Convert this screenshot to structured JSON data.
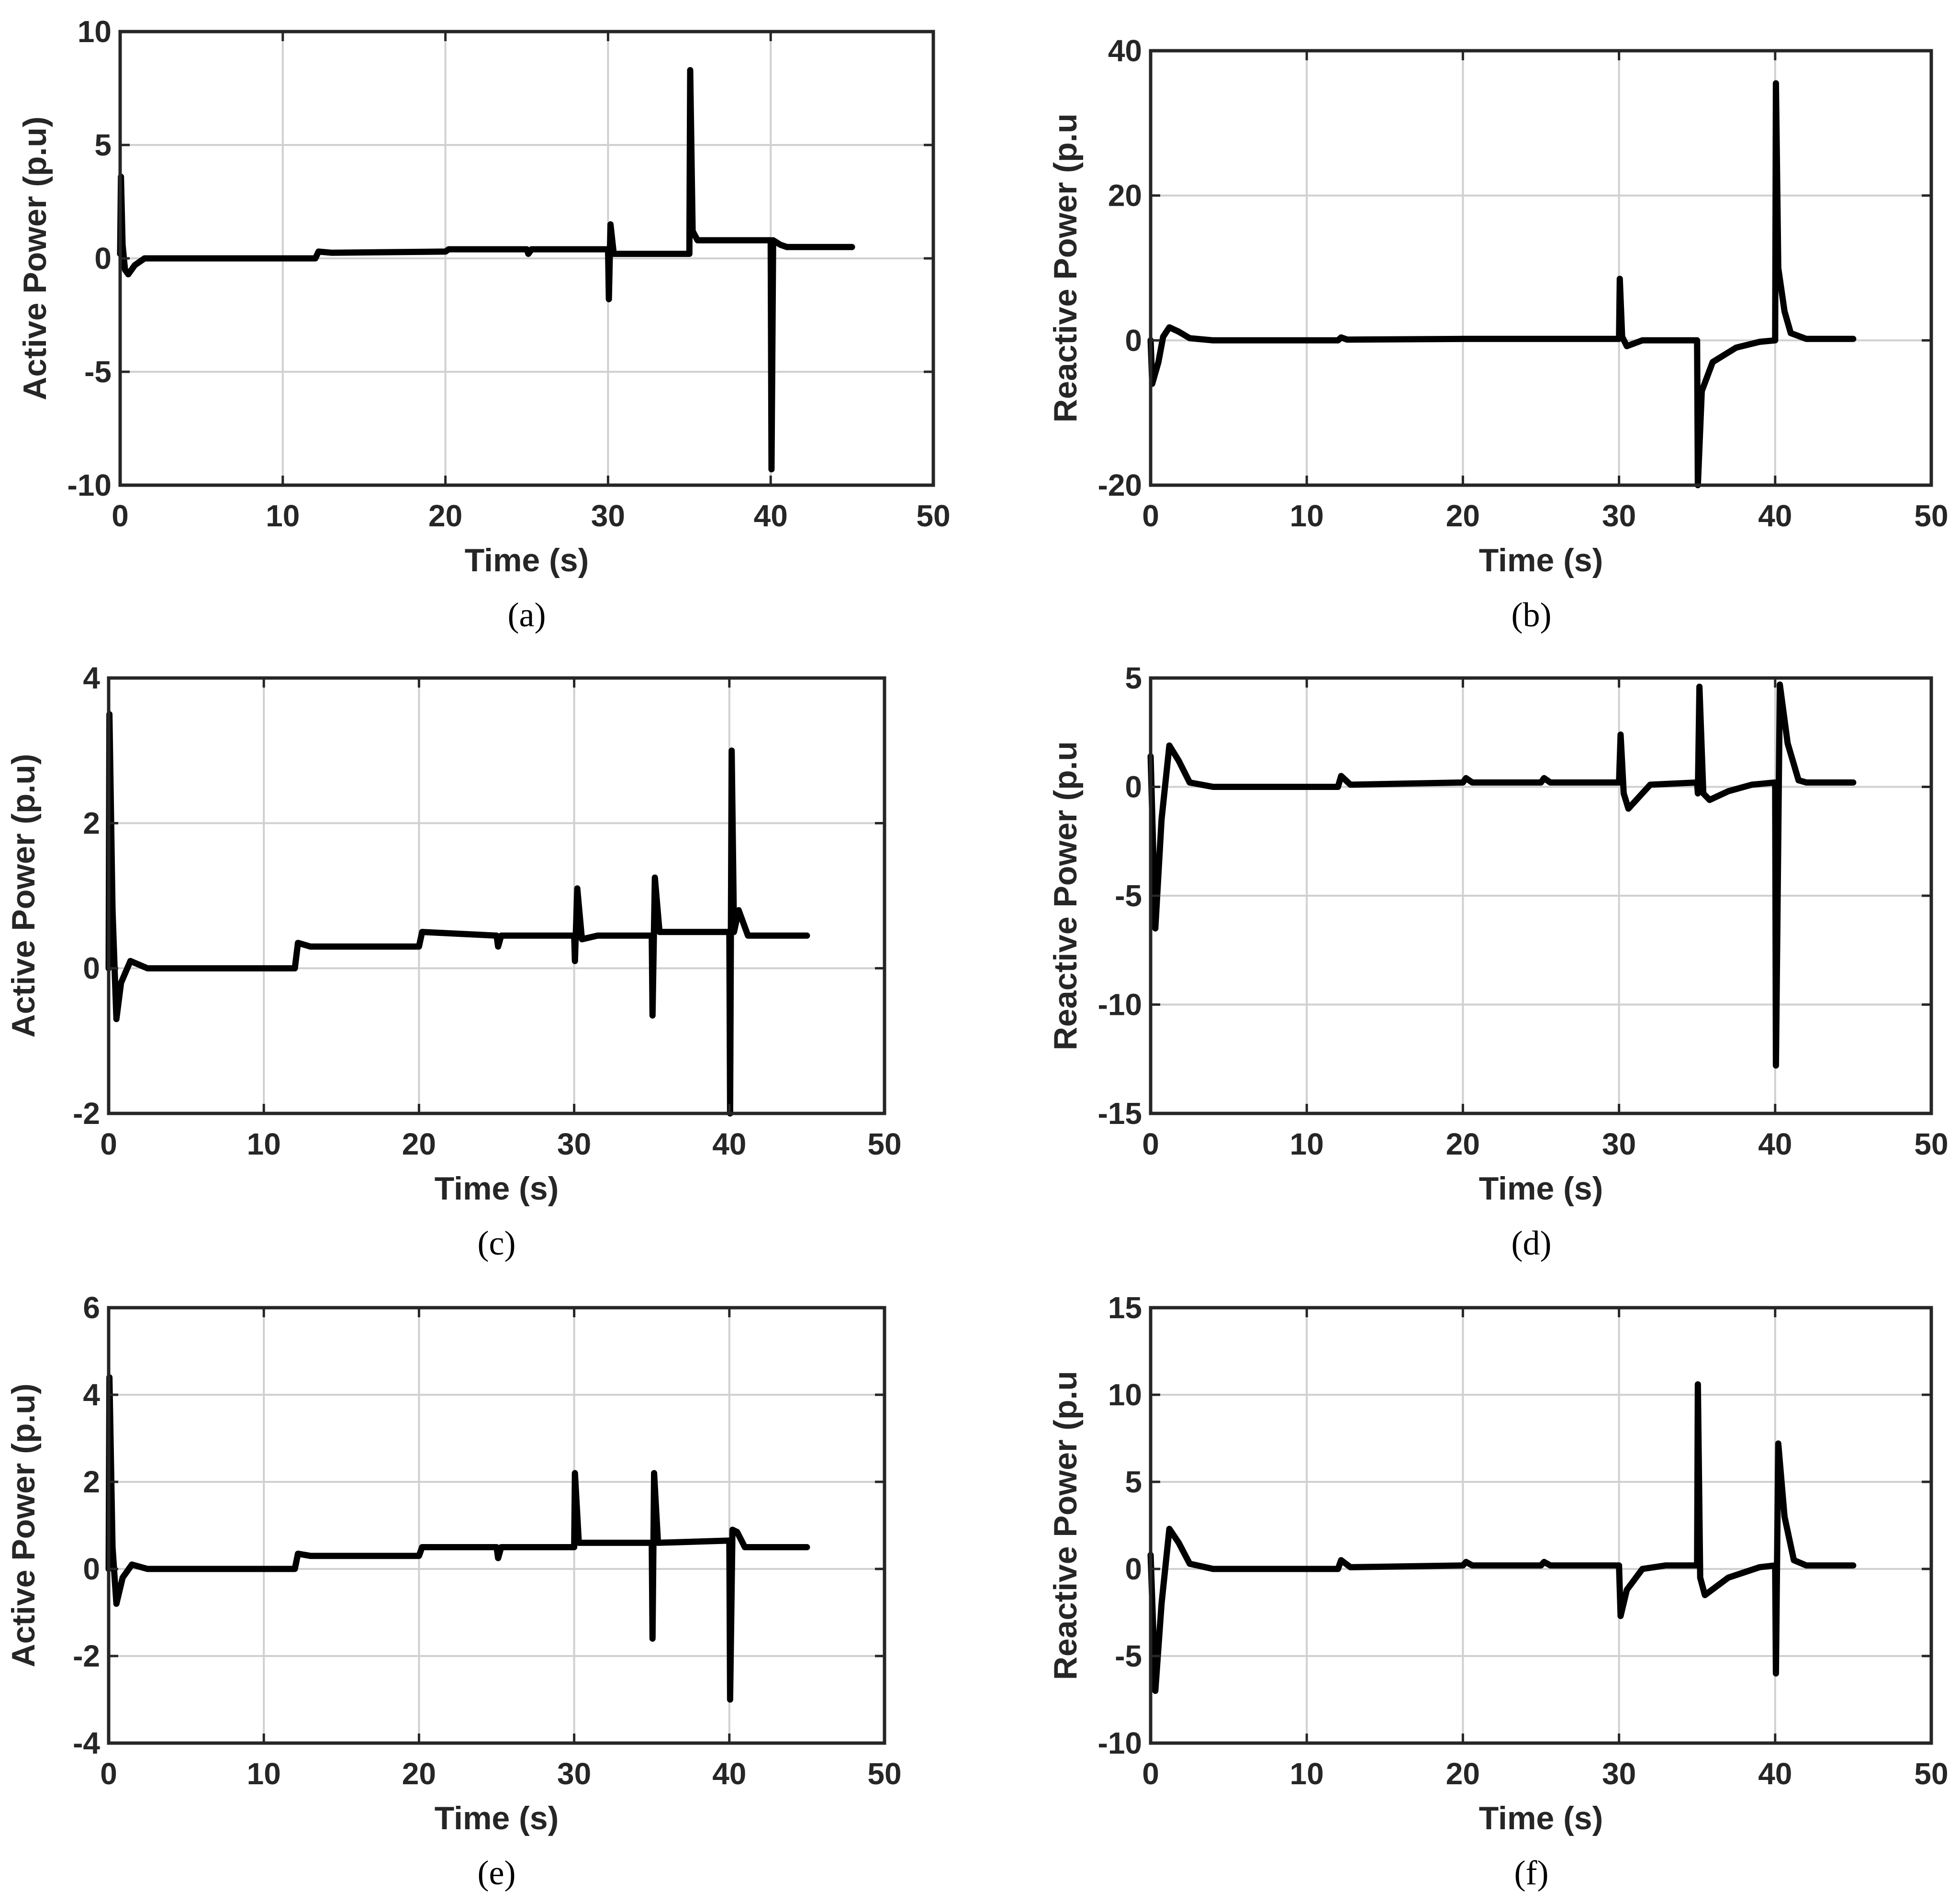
{
  "figure": {
    "colors": {
      "line": "#000000",
      "axes": "#262626",
      "grid": "#d0d0d0",
      "background": "#ffffff"
    }
  },
  "chart_data": [
    {
      "type": "line",
      "caption": "(a)",
      "xlabel": "Time (s)",
      "ylabel": "Active Power (p.u)",
      "xlim": [
        0,
        50
      ],
      "ylim": [
        -10,
        10
      ],
      "grid": true,
      "xticks": [
        "0",
        "10",
        "20",
        "30",
        "40",
        "50"
      ],
      "yticks": [
        "-10",
        "-5",
        "0",
        "5",
        "10"
      ],
      "series": [
        {
          "name": "Active Power",
          "points": [
            [
              0,
              0.2
            ],
            [
              0.05,
              3.6
            ],
            [
              0.15,
              0.6
            ],
            [
              0.3,
              -0.5
            ],
            [
              0.5,
              -0.7
            ],
            [
              0.9,
              -0.3
            ],
            [
              1.5,
              0
            ],
            [
              3,
              0
            ],
            [
              12,
              0
            ],
            [
              12.2,
              0.3
            ],
            [
              13,
              0.25
            ],
            [
              20,
              0.3
            ],
            [
              20.2,
              0.4
            ],
            [
              25,
              0.4
            ],
            [
              25.1,
              0.2
            ],
            [
              25.3,
              0.4
            ],
            [
              30,
              0.4
            ],
            [
              30.05,
              -1.8
            ],
            [
              30.15,
              1.5
            ],
            [
              30.35,
              0.2
            ],
            [
              35,
              0.2
            ],
            [
              35.05,
              8.3
            ],
            [
              35.2,
              1.2
            ],
            [
              35.5,
              0.8
            ],
            [
              40,
              0.8
            ],
            [
              40.05,
              -9.3
            ],
            [
              40.15,
              0.8
            ],
            [
              40.6,
              0.6
            ],
            [
              41,
              0.5
            ],
            [
              45,
              0.5
            ]
          ]
        }
      ]
    },
    {
      "type": "line",
      "caption": "(b)",
      "xlabel": "Time (s)",
      "ylabel": "Reactive Power (p.u",
      "xlim": [
        0,
        50
      ],
      "ylim": [
        -20,
        40
      ],
      "grid": true,
      "xticks": [
        "0",
        "10",
        "20",
        "30",
        "40",
        "50"
      ],
      "yticks": [
        "-20",
        "0",
        "20",
        "40"
      ],
      "series": [
        {
          "name": "Reactive Power",
          "points": [
            [
              0,
              0
            ],
            [
              0.1,
              -6
            ],
            [
              0.5,
              -3
            ],
            [
              0.8,
              0.5
            ],
            [
              1.2,
              1.8
            ],
            [
              1.8,
              1.2
            ],
            [
              2.5,
              0.3
            ],
            [
              4,
              0
            ],
            [
              12,
              0
            ],
            [
              12.2,
              0.4
            ],
            [
              12.6,
              0.1
            ],
            [
              20,
              0.2
            ],
            [
              25,
              0.2
            ],
            [
              30,
              0.2
            ],
            [
              30.05,
              8.5
            ],
            [
              30.2,
              0.5
            ],
            [
              30.5,
              -0.8
            ],
            [
              31.5,
              0
            ],
            [
              35,
              0
            ],
            [
              35.05,
              -20
            ],
            [
              35.3,
              -7
            ],
            [
              36,
              -3
            ],
            [
              37.5,
              -1
            ],
            [
              39,
              -0.2
            ],
            [
              40,
              0
            ],
            [
              40.05,
              35.5
            ],
            [
              40.2,
              10
            ],
            [
              40.6,
              4
            ],
            [
              41,
              1
            ],
            [
              42,
              0.2
            ],
            [
              45,
              0.2
            ]
          ]
        }
      ]
    },
    {
      "type": "line",
      "caption": "(c)",
      "xlabel": "Time (s)",
      "ylabel": "Active Power (p.u)",
      "xlim": [
        0,
        50
      ],
      "ylim": [
        -2,
        4
      ],
      "grid": true,
      "xticks": [
        "0",
        "10",
        "20",
        "30",
        "40",
        "50"
      ],
      "yticks": [
        "-2",
        "0",
        "2",
        "4"
      ],
      "series": [
        {
          "name": "Active Power",
          "points": [
            [
              0,
              0
            ],
            [
              0.05,
              3.5
            ],
            [
              0.25,
              0.8
            ],
            [
              0.5,
              -0.7
            ],
            [
              0.8,
              -0.2
            ],
            [
              1.4,
              0.1
            ],
            [
              2.5,
              0
            ],
            [
              12,
              0
            ],
            [
              12.2,
              0.35
            ],
            [
              13,
              0.3
            ],
            [
              20,
              0.3
            ],
            [
              20.2,
              0.5
            ],
            [
              25,
              0.45
            ],
            [
              25.1,
              0.3
            ],
            [
              25.3,
              0.45
            ],
            [
              30,
              0.45
            ],
            [
              30.05,
              0.1
            ],
            [
              30.2,
              1.1
            ],
            [
              30.5,
              0.4
            ],
            [
              31.5,
              0.45
            ],
            [
              35,
              0.45
            ],
            [
              35.05,
              -0.65
            ],
            [
              35.2,
              1.25
            ],
            [
              35.5,
              0.5
            ],
            [
              40,
              0.5
            ],
            [
              40.05,
              -2
            ],
            [
              40.15,
              3
            ],
            [
              40.3,
              0.5
            ],
            [
              40.6,
              0.8
            ],
            [
              41.2,
              0.45
            ],
            [
              45,
              0.45
            ]
          ]
        }
      ]
    },
    {
      "type": "line",
      "caption": "(d)",
      "xlabel": "Time (s)",
      "ylabel": "Reactive Power (p.u",
      "xlim": [
        0,
        50
      ],
      "ylim": [
        -15,
        5
      ],
      "grid": true,
      "xticks": [
        "0",
        "10",
        "20",
        "30",
        "40",
        "50"
      ],
      "yticks": [
        "-15",
        "-10",
        "-5",
        "0",
        "5"
      ],
      "series": [
        {
          "name": "Reactive Power",
          "points": [
            [
              0,
              1.4
            ],
            [
              0.3,
              -6.5
            ],
            [
              0.7,
              -1.5
            ],
            [
              1.2,
              1.9
            ],
            [
              1.8,
              1.2
            ],
            [
              2.5,
              0.2
            ],
            [
              4,
              0
            ],
            [
              12,
              0
            ],
            [
              12.2,
              0.5
            ],
            [
              12.8,
              0.1
            ],
            [
              20,
              0.2
            ],
            [
              20.2,
              0.4
            ],
            [
              20.6,
              0.2
            ],
            [
              25,
              0.2
            ],
            [
              25.2,
              0.4
            ],
            [
              25.6,
              0.2
            ],
            [
              30,
              0.2
            ],
            [
              30.1,
              2.4
            ],
            [
              30.3,
              -0.3
            ],
            [
              30.6,
              -1
            ],
            [
              32,
              0.1
            ],
            [
              35,
              0.2
            ],
            [
              35.05,
              -0.3
            ],
            [
              35.15,
              4.6
            ],
            [
              35.4,
              -0.3
            ],
            [
              35.8,
              -0.6
            ],
            [
              37,
              -0.2
            ],
            [
              38.5,
              0.1
            ],
            [
              40,
              0.2
            ],
            [
              40.05,
              -12.8
            ],
            [
              40.3,
              4.7
            ],
            [
              40.8,
              2
            ],
            [
              41.5,
              0.3
            ],
            [
              42,
              0.2
            ],
            [
              45,
              0.2
            ]
          ]
        }
      ]
    },
    {
      "type": "line",
      "caption": "(e)",
      "xlabel": "Time (s)",
      "ylabel": "Active Power (p.u)",
      "xlim": [
        0,
        50
      ],
      "ylim": [
        -4,
        6
      ],
      "grid": true,
      "xticks": [
        "0",
        "10",
        "20",
        "30",
        "40",
        "50"
      ],
      "yticks": [
        "-4",
        "-2",
        "0",
        "2",
        "4",
        "6"
      ],
      "series": [
        {
          "name": "Active Power",
          "points": [
            [
              0,
              0
            ],
            [
              0.05,
              4.4
            ],
            [
              0.25,
              0.5
            ],
            [
              0.5,
              -0.8
            ],
            [
              0.9,
              -0.2
            ],
            [
              1.5,
              0.1
            ],
            [
              2.5,
              0
            ],
            [
              12,
              0
            ],
            [
              12.2,
              0.35
            ],
            [
              13,
              0.3
            ],
            [
              20,
              0.3
            ],
            [
              20.2,
              0.5
            ],
            [
              25,
              0.5
            ],
            [
              25.1,
              0.25
            ],
            [
              25.3,
              0.5
            ],
            [
              30,
              0.5
            ],
            [
              30.05,
              2.2
            ],
            [
              30.3,
              0.6
            ],
            [
              31.5,
              0.6
            ],
            [
              35,
              0.6
            ],
            [
              35.05,
              -1.6
            ],
            [
              35.15,
              2.2
            ],
            [
              35.4,
              0.6
            ],
            [
              40,
              0.65
            ],
            [
              40.05,
              -3
            ],
            [
              40.2,
              0.9
            ],
            [
              40.5,
              0.85
            ],
            [
              41,
              0.5
            ],
            [
              45,
              0.5
            ]
          ]
        }
      ]
    },
    {
      "type": "line",
      "caption": "(f)",
      "xlabel": "Time (s)",
      "ylabel": "Reactive Power (p.u",
      "xlim": [
        0,
        50
      ],
      "ylim": [
        -10,
        15
      ],
      "grid": true,
      "xticks": [
        "0",
        "10",
        "20",
        "30",
        "40",
        "50"
      ],
      "yticks": [
        "-10",
        "-5",
        "0",
        "5",
        "10",
        "15"
      ],
      "series": [
        {
          "name": "Reactive Power",
          "points": [
            [
              0,
              0.8
            ],
            [
              0.3,
              -7
            ],
            [
              0.7,
              -2
            ],
            [
              1.2,
              2.3
            ],
            [
              1.8,
              1.5
            ],
            [
              2.5,
              0.3
            ],
            [
              4,
              0
            ],
            [
              12,
              0
            ],
            [
              12.2,
              0.5
            ],
            [
              12.8,
              0.1
            ],
            [
              20,
              0.2
            ],
            [
              20.2,
              0.4
            ],
            [
              20.6,
              0.2
            ],
            [
              25,
              0.2
            ],
            [
              25.2,
              0.4
            ],
            [
              25.6,
              0.2
            ],
            [
              30,
              0.2
            ],
            [
              30.1,
              -2.7
            ],
            [
              30.5,
              -1.2
            ],
            [
              31.5,
              0
            ],
            [
              33,
              0.2
            ],
            [
              35,
              0.2
            ],
            [
              35.05,
              10.6
            ],
            [
              35.2,
              -0.5
            ],
            [
              35.5,
              -1.5
            ],
            [
              37,
              -0.5
            ],
            [
              39,
              0.1
            ],
            [
              40,
              0.2
            ],
            [
              40.05,
              -6
            ],
            [
              40.2,
              7.2
            ],
            [
              40.6,
              3
            ],
            [
              41.2,
              0.5
            ],
            [
              42,
              0.2
            ],
            [
              45,
              0.2
            ]
          ]
        }
      ]
    }
  ]
}
